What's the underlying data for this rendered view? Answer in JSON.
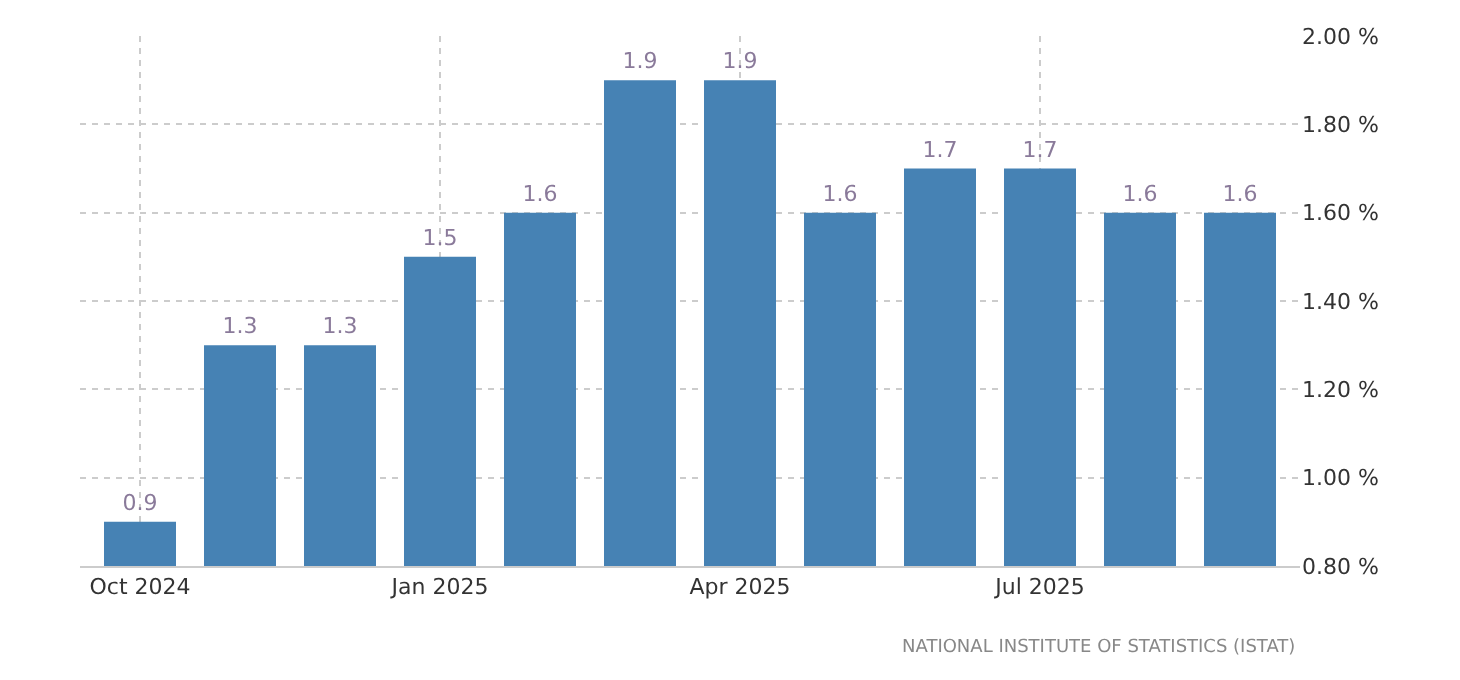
{
  "chart_data": {
    "type": "bar",
    "categories": [
      "Oct 2024",
      null,
      null,
      "Jan 2025",
      null,
      null,
      "Apr 2025",
      null,
      null,
      "Jul 2025",
      null,
      null
    ],
    "values": [
      0.9,
      1.3,
      1.3,
      1.5,
      1.6,
      1.9,
      1.9,
      1.6,
      1.7,
      1.7,
      1.6,
      1.6
    ],
    "color": "#4682b4",
    "data_labels": true,
    "ylim": [
      0.8,
      2.0
    ],
    "yticks": [
      {
        "value": 0.8,
        "label": "0.80 %"
      },
      {
        "value": 1.0,
        "label": "1.00 %"
      },
      {
        "value": 1.2,
        "label": "1.20 %"
      },
      {
        "value": 1.4,
        "label": "1.40 %"
      },
      {
        "value": 1.6,
        "label": "1.60 %"
      },
      {
        "value": 1.8,
        "label": "1.80 %"
      },
      {
        "value": 2.0,
        "label": "2.00 %"
      }
    ],
    "grid": true,
    "annotations": [
      "NATIONAL INSTITUTE OF STATISTICS (ISTAT)"
    ]
  }
}
